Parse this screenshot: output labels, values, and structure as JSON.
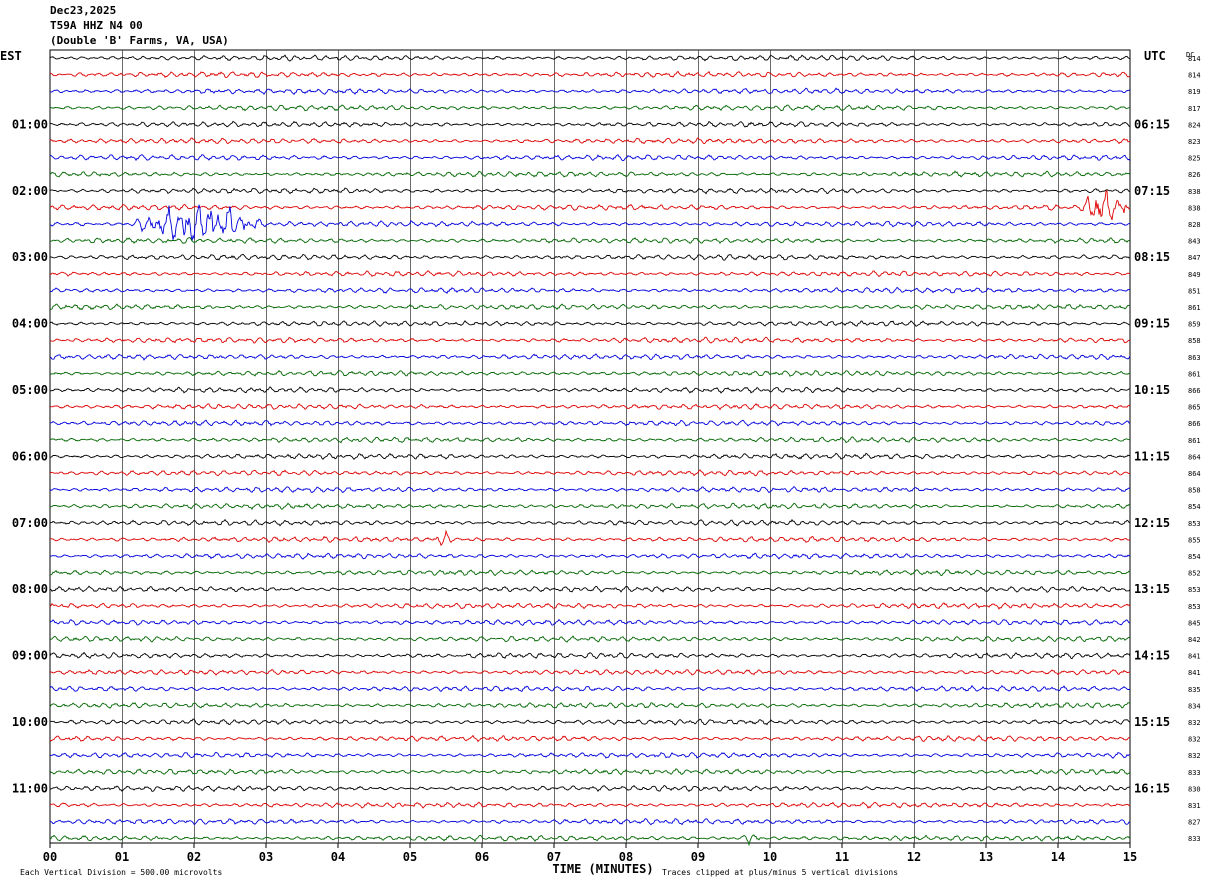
{
  "header": {
    "date": "Dec23,2025",
    "station": "T59A HHZ N4 00",
    "location": "(Double 'B' Farms, VA, USA)"
  },
  "labels": {
    "left_tz": "EST",
    "right_tz": "UTC",
    "dc": "DC",
    "footer_left": "Each Vertical Division =  500.00 microvolts",
    "footer_right": "Traces clipped at plus/minus 5 vertical divisions"
  },
  "chart_data": {
    "type": "line",
    "title": "",
    "xlabel": "TIME (MINUTES)",
    "ylabel": "",
    "xlim": [
      0,
      15
    ],
    "x_ticks": [
      "00",
      "01",
      "02",
      "03",
      "04",
      "05",
      "06",
      "07",
      "08",
      "09",
      "10",
      "11",
      "12",
      "13",
      "14",
      "15"
    ],
    "grid": true,
    "trace_colors": [
      "#000000",
      "#dd0000",
      "#0000dd",
      "#006600"
    ],
    "left_hour_labels": [
      "01:00",
      "02:00",
      "03:00",
      "04:00",
      "05:00",
      "06:00",
      "07:00",
      "08:00",
      "09:00",
      "10:00",
      "11:00"
    ],
    "right_hour_labels": [
      "06:15",
      "07:15",
      "08:15",
      "09:15",
      "10:15",
      "11:15",
      "12:15",
      "13:15",
      "14:15",
      "15:15",
      "16:15"
    ],
    "dc_offsets": [
      "814",
      "814",
      "819",
      "817",
      "824",
      "823",
      "825",
      "826",
      "838",
      "838",
      "828",
      "843",
      "847",
      "849",
      "851",
      "861",
      "859",
      "858",
      "863",
      "861",
      "866",
      "865",
      "866",
      "861",
      "864",
      "864",
      "858",
      "854",
      "853",
      "855",
      "854",
      "852",
      "853",
      "853",
      "845",
      "842",
      "841",
      "841",
      "835",
      "834",
      "832",
      "832",
      "832",
      "833",
      "830",
      "831",
      "827",
      "833"
    ],
    "events": [
      {
        "row": 10,
        "start_min": 1.1,
        "end_min": 3.0,
        "amplitude": "large"
      },
      {
        "row": 9,
        "start_min": 14.3,
        "end_min": 15.0,
        "amplitude": "large"
      },
      {
        "row": 29,
        "start_min": 5.3,
        "end_min": 5.6,
        "amplitude": "small"
      },
      {
        "row": 47,
        "start_min": 9.6,
        "end_min": 9.9,
        "amplitude": "small"
      }
    ]
  }
}
